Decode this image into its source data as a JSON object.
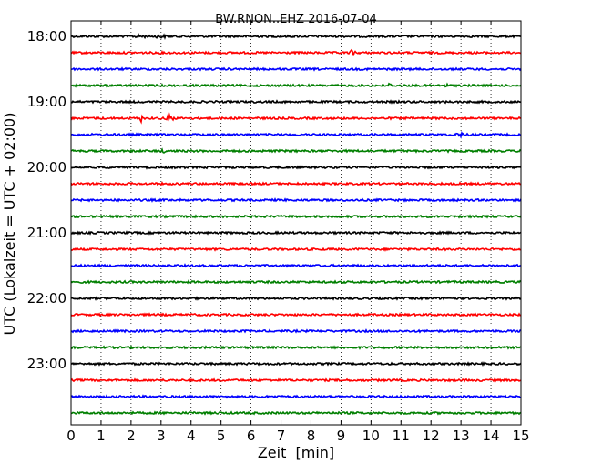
{
  "chart_data": {
    "type": "line",
    "title": "BW.RNON..EHZ 2016-07-04",
    "xlabel": "Zeit  [min]",
    "ylabel": "UTC (Lokalzeit = UTC + 02:00)",
    "xlim": [
      0,
      15
    ],
    "xticks": [
      0,
      1,
      2,
      3,
      4,
      5,
      6,
      7,
      8,
      9,
      10,
      11,
      12,
      13,
      14,
      15
    ],
    "xtick_labels": [
      "0",
      "1",
      "2",
      "3",
      "4",
      "5",
      "6",
      "7",
      "8",
      "9",
      "10",
      "11",
      "12",
      "13",
      "14",
      "15"
    ],
    "ytick_labels": [
      "18:00",
      "19:00",
      "20:00",
      "21:00",
      "22:00",
      "23:00"
    ],
    "grid": "vertical dotted",
    "trace_colors": [
      "#000000",
      "#ff0000",
      "#0000ff",
      "#007f00"
    ],
    "series": [
      {
        "start": "18:00",
        "color": "#000000",
        "events": [
          {
            "x": 2.3,
            "amp": 0.6,
            "width": 0.25
          },
          {
            "x": 3.0,
            "amp": 0.5,
            "width": 0.3
          }
        ]
      },
      {
        "start": "18:15",
        "color": "#ff0000",
        "events": [
          {
            "x": 9.4,
            "amp": 1.6,
            "width": 0.12
          }
        ]
      },
      {
        "start": "18:30",
        "color": "#0000ff",
        "events": []
      },
      {
        "start": "18:45",
        "color": "#007f00",
        "events": [
          {
            "x": 10.6,
            "amp": 1.0,
            "width": 0.1
          },
          {
            "x": 12.5,
            "amp": 0.5,
            "width": 0.15
          }
        ]
      },
      {
        "start": "19:00",
        "color": "#000000",
        "events": []
      },
      {
        "start": "19:15",
        "color": "#ff0000",
        "events": [
          {
            "x": 2.35,
            "amp": 2.6,
            "width": 0.05
          },
          {
            "x": 3.3,
            "amp": 1.8,
            "width": 0.15
          }
        ]
      },
      {
        "start": "19:30",
        "color": "#0000ff",
        "events": [
          {
            "x": 13.0,
            "amp": 0.7,
            "width": 0.3
          }
        ]
      },
      {
        "start": "19:45",
        "color": "#007f00",
        "events": [
          {
            "x": 3.1,
            "amp": 0.4,
            "width": 0.2
          }
        ]
      },
      {
        "start": "20:00",
        "color": "#000000",
        "events": []
      },
      {
        "start": "20:15",
        "color": "#ff0000",
        "events": []
      },
      {
        "start": "20:30",
        "color": "#0000ff",
        "events": []
      },
      {
        "start": "20:45",
        "color": "#007f00",
        "events": []
      },
      {
        "start": "21:00",
        "color": "#000000",
        "events": []
      },
      {
        "start": "21:15",
        "color": "#ff0000",
        "events": []
      },
      {
        "start": "21:30",
        "color": "#0000ff",
        "events": []
      },
      {
        "start": "21:45",
        "color": "#007f00",
        "events": []
      },
      {
        "start": "22:00",
        "color": "#000000",
        "events": []
      },
      {
        "start": "22:15",
        "color": "#ff0000",
        "events": []
      },
      {
        "start": "22:30",
        "color": "#0000ff",
        "events": []
      },
      {
        "start": "22:45",
        "color": "#007f00",
        "events": []
      },
      {
        "start": "23:00",
        "color": "#000000",
        "events": []
      },
      {
        "start": "23:15",
        "color": "#ff0000",
        "events": []
      },
      {
        "start": "23:30",
        "color": "#0000ff",
        "events": []
      },
      {
        "start": "23:45",
        "color": "#007f00",
        "events": []
      }
    ]
  }
}
